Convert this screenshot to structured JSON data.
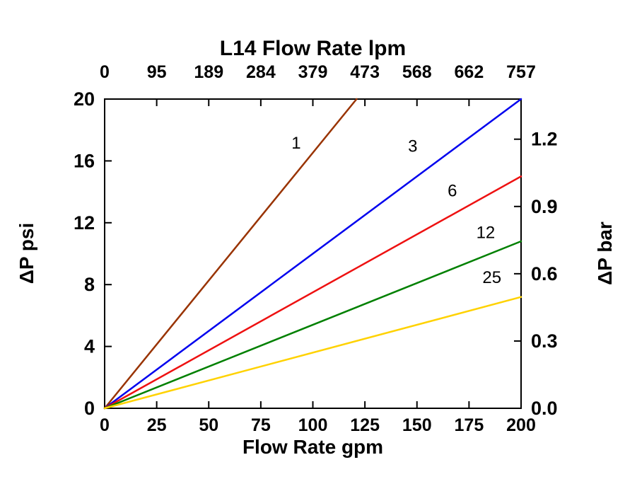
{
  "chart_data": {
    "type": "line",
    "title_top": "L14 Flow Rate lpm",
    "xlabel_bottom": "Flow Rate gpm",
    "ylabel_left": "ΔP psi",
    "ylabel_right": "ΔP bar",
    "x_axis_bottom": {
      "unit": "gpm",
      "range": [
        0,
        200
      ],
      "ticks": [
        0,
        25,
        50,
        75,
        100,
        125,
        150,
        175,
        200
      ]
    },
    "x_axis_top": {
      "unit": "lpm",
      "range": [
        0,
        757
      ],
      "ticks": [
        "0",
        "95",
        "189",
        "284",
        "379",
        "473",
        "568",
        "662",
        "757"
      ]
    },
    "y_axis_left": {
      "unit": "psi",
      "range": [
        0,
        20
      ],
      "ticks": [
        0,
        4,
        8,
        12,
        16,
        20
      ]
    },
    "y_axis_right": {
      "unit": "bar",
      "psi_per_bar": 14.5038,
      "ticks": [
        "0.0",
        "0.3",
        "0.6",
        "0.9",
        "1.2"
      ]
    },
    "grid": false,
    "frame_color": "#000000",
    "series": [
      {
        "label": "1",
        "color": "#993300",
        "points": [
          [
            0,
            0
          ],
          [
            121,
            20
          ]
        ],
        "label_pos": [
          92,
          16.8
        ]
      },
      {
        "label": "3",
        "color": "#0000ee",
        "points": [
          [
            0,
            0
          ],
          [
            200,
            20
          ]
        ],
        "label_pos": [
          148,
          16.6
        ]
      },
      {
        "label": "6",
        "color": "#ee1111",
        "points": [
          [
            0,
            0
          ],
          [
            200,
            15
          ]
        ],
        "label_pos": [
          167,
          13.7
        ]
      },
      {
        "label": "12",
        "color": "#008000",
        "points": [
          [
            0,
            0
          ],
          [
            200,
            10.8
          ]
        ],
        "label_pos": [
          183,
          11.0
        ]
      },
      {
        "label": "25",
        "color": "#ffd200",
        "points": [
          [
            0,
            0
          ],
          [
            200,
            7.2
          ]
        ],
        "label_pos": [
          186,
          8.1
        ]
      }
    ]
  }
}
